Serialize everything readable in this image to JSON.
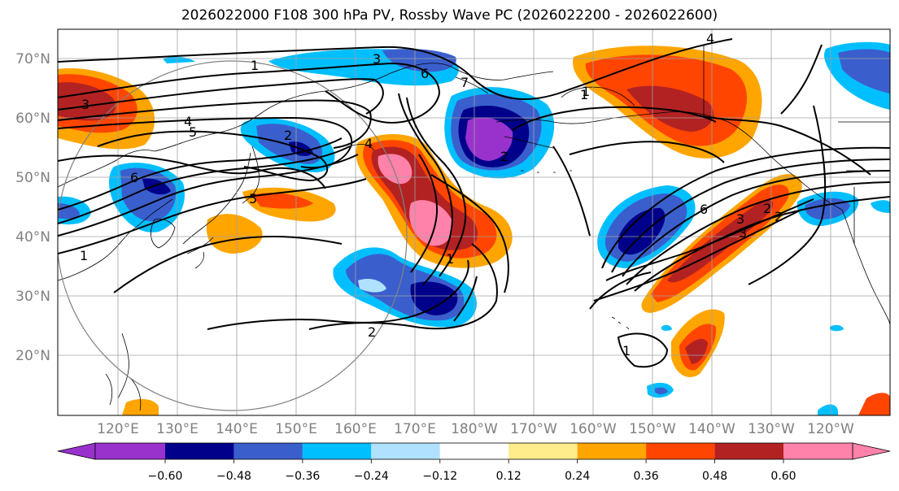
{
  "title": "2026022000 F108 300 hPa PV, Rossby Wave PC (2026022200 - 2026022600)",
  "lat_labels": [
    "70°N",
    "60°N",
    "50°N",
    "40°N",
    "30°N",
    "20°N"
  ],
  "lon_labels": [
    "120°E",
    "130°E",
    "140°E",
    "150°E",
    "160°E",
    "170°E",
    "180°W",
    "170°W",
    "160°W",
    "150°W",
    "140°W",
    "130°W",
    "120°W"
  ],
  "colorbar": {
    "colors": [
      "#9932cc",
      "#00008b",
      "#3a5fcd",
      "#00bfff",
      "#b0e2ff",
      "#ffffff",
      "#ffec8b",
      "#ffa500",
      "#ff4500",
      "#b22222",
      "#ff82ab"
    ],
    "under_color": "#9932cc",
    "over_color": "#ff82ab",
    "tick_labels": [
      "−0.60",
      "−0.48",
      "−0.36",
      "−0.24",
      "−0.12",
      "0.12",
      "0.24",
      "0.36",
      "0.48",
      "0.60"
    ]
  },
  "contour_labels": [
    "1",
    "3",
    "5",
    "6",
    "7",
    "4",
    "1",
    "3",
    "4",
    "5",
    "2",
    "6",
    "2",
    "1",
    "1",
    "3",
    "6",
    "2",
    "1",
    "3",
    "4",
    "2",
    "2",
    "1"
  ],
  "colors": {
    "contour": "#000000",
    "grid": "#a0a0a0",
    "coast": "#000000",
    "range_ring": "#808080"
  }
}
